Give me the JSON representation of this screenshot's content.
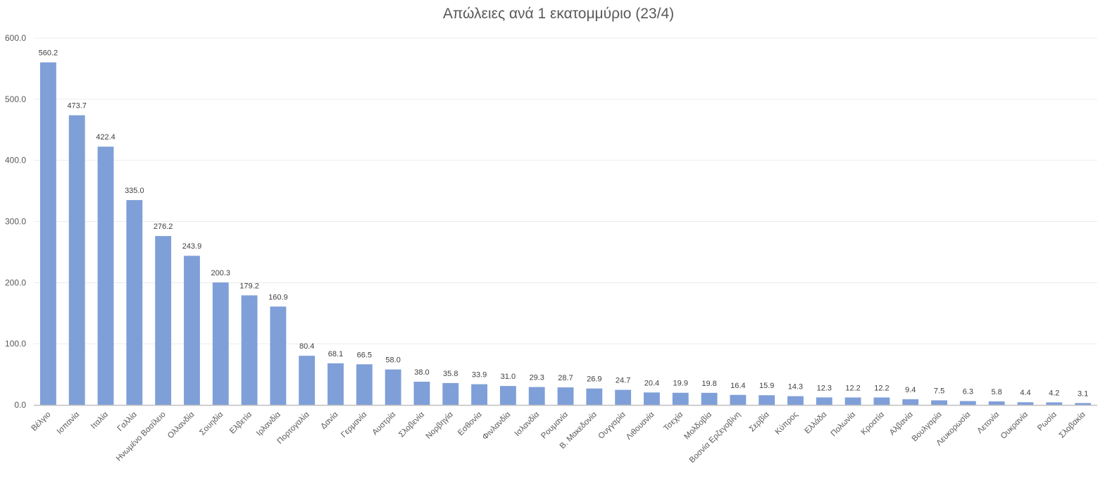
{
  "chart_data": {
    "type": "bar",
    "title": "Απώλειες ανά 1 εκατομμύριο (23/4)",
    "xlabel": "",
    "ylabel": "",
    "ylim": [
      0,
      600
    ],
    "yticks": [
      "0.0",
      "100.0",
      "200.0",
      "300.0",
      "400.0",
      "500.0",
      "600.0"
    ],
    "ytick_values": [
      0,
      100,
      200,
      300,
      400,
      500,
      600
    ],
    "grid": true,
    "legend": "none",
    "bar_color": "#7f9fd8",
    "categories": [
      "Βέλγιο",
      "Ισπανία",
      "Ιταλία",
      "Γαλλία",
      "Ηνωμένο Βασίλειο",
      "Ολλανδία",
      "Σουηδία",
      "Ελβετία",
      "Ιρλανδία",
      "Πορτογαλία",
      "Δανία",
      "Γερμανία",
      "Αυστρία",
      "Σλοβενία",
      "Νορβηγία",
      "Εσθονία",
      "Φινλανδία",
      "Ισλανδία",
      "Ρουμανία",
      "Β. Μακεδονία",
      "Ουγγαρία",
      "Λιθουανία",
      "Τσεχία",
      "Μολδοβία",
      "Βοσνία Ερζεγοβίνη",
      "Σερβία",
      "Κύπρος",
      "Ελλάδα",
      "Πολωνία",
      "Κροατία",
      "Αλβανία",
      "Βουλγαρία",
      "Λευκορωσία",
      "Λετονία",
      "Ουκρανία",
      "Ρωσία",
      "Σλοβακία"
    ],
    "values": [
      560.2,
      473.7,
      422.4,
      335.0,
      276.2,
      243.9,
      200.3,
      179.2,
      160.9,
      80.4,
      68.1,
      66.5,
      58.0,
      38.0,
      35.8,
      33.9,
      31.0,
      29.3,
      28.7,
      26.9,
      24.7,
      20.4,
      19.9,
      19.8,
      16.4,
      15.9,
      14.3,
      12.3,
      12.2,
      12.2,
      9.4,
      7.5,
      6.3,
      5.8,
      4.4,
      4.2,
      3.1
    ],
    "data_labels": [
      "560.2",
      "473.7",
      "422.4",
      "335.0",
      "276.2",
      "243.9",
      "200.3",
      "179.2",
      "160.9",
      "80.4",
      "68.1",
      "66.5",
      "58.0",
      "38.0",
      "35.8",
      "33.9",
      "31.0",
      "29.3",
      "28.7",
      "26.9",
      "24.7",
      "20.4",
      "19.9",
      "19.8",
      "16.4",
      "15.9",
      "14.3",
      "12.3",
      "12.2",
      "12.2",
      "9.4",
      "7.5",
      "6.3",
      "5.8",
      "4.4",
      "4.2",
      "3.1"
    ]
  }
}
